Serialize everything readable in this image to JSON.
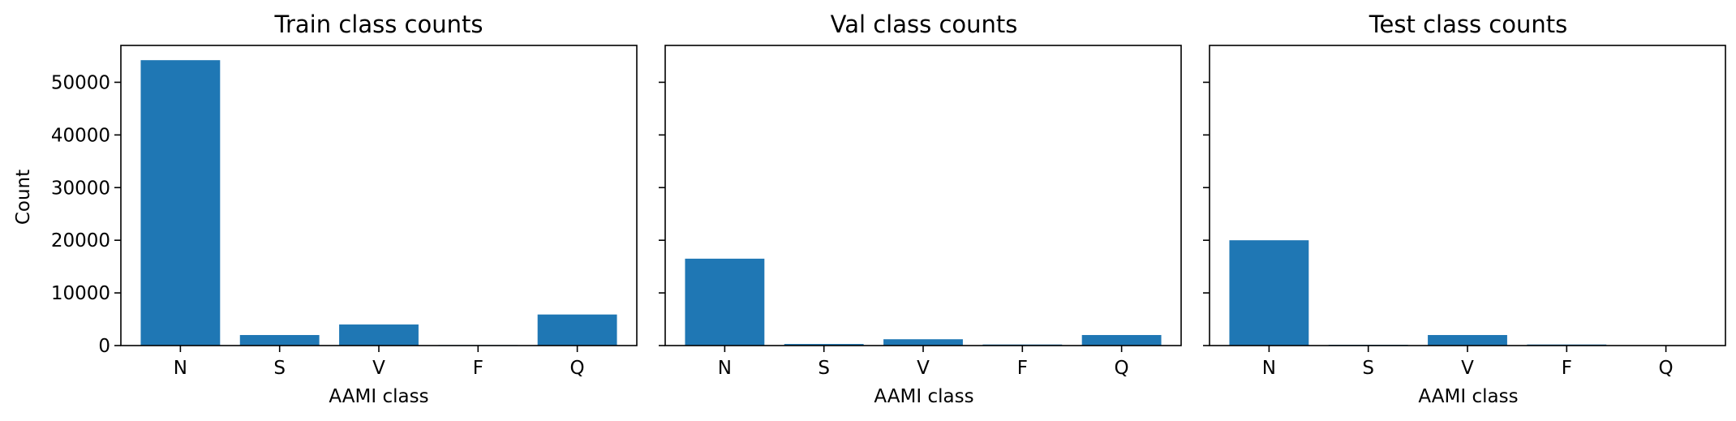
{
  "chart_data": [
    {
      "type": "bar",
      "title": "Train class counts",
      "xlabel": "AAMI class",
      "ylabel": "Count",
      "categories": [
        "N",
        "S",
        "V",
        "F",
        "Q"
      ],
      "values": [
        54200,
        2000,
        4000,
        100,
        5900
      ],
      "ylim": [
        0,
        57000
      ],
      "yticks": [
        0,
        10000,
        20000,
        30000,
        40000,
        50000
      ],
      "show_y_tick_labels": true,
      "bar_color": "#1f77b4",
      "grid": false
    },
    {
      "type": "bar",
      "title": "Val class counts",
      "xlabel": "AAMI class",
      "ylabel": "",
      "categories": [
        "N",
        "S",
        "V",
        "F",
        "Q"
      ],
      "values": [
        16500,
        300,
        1200,
        200,
        2000
      ],
      "ylim": [
        0,
        57000
      ],
      "yticks": [
        0,
        10000,
        20000,
        30000,
        40000,
        50000
      ],
      "show_y_tick_labels": false,
      "bar_color": "#1f77b4",
      "grid": false
    },
    {
      "type": "bar",
      "title": "Test class counts",
      "xlabel": "AAMI class",
      "ylabel": "",
      "categories": [
        "N",
        "S",
        "V",
        "F",
        "Q"
      ],
      "values": [
        20000,
        150,
        2000,
        200,
        40
      ],
      "ylim": [
        0,
        57000
      ],
      "yticks": [
        0,
        10000,
        20000,
        30000,
        40000,
        50000
      ],
      "show_y_tick_labels": false,
      "bar_color": "#1f77b4",
      "grid": false
    }
  ]
}
